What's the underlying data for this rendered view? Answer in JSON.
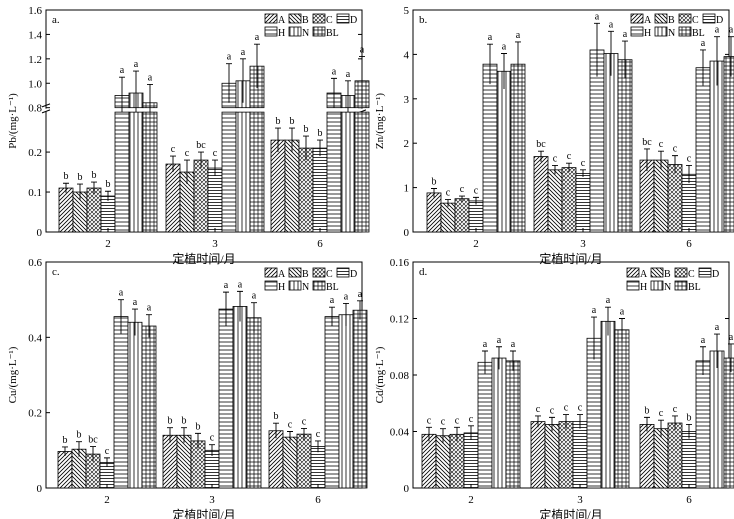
{
  "chart_data": [
    {
      "type": "bar",
      "panel": "a.",
      "ylabel": "Pb/(mg·L⁻¹)",
      "xlabel": "定植时间/月",
      "categories": [
        "2",
        "3",
        "6"
      ],
      "axis_break": {
        "lower": [
          0,
          0.3
        ],
        "upper": [
          0.8,
          1.6
        ]
      },
      "yticks": [
        "0",
        "0.1",
        "0.2",
        "0.8",
        "1.0",
        "1.2",
        "1.4",
        "1.6"
      ],
      "series": [
        {
          "name": "A",
          "values": [
            0.11,
            0.17,
            0.23
          ],
          "errors": [
            0.012,
            0.02,
            0.03
          ],
          "labels": [
            "b",
            "c",
            "b"
          ]
        },
        {
          "name": "B",
          "values": [
            0.1,
            0.15,
            0.23
          ],
          "errors": [
            0.02,
            0.03,
            0.03
          ],
          "labels": [
            "b",
            "c",
            "b"
          ]
        },
        {
          "name": "C",
          "values": [
            0.11,
            0.18,
            0.21
          ],
          "errors": [
            0.015,
            0.02,
            0.03
          ],
          "labels": [
            "b",
            "bc",
            "b"
          ]
        },
        {
          "name": "D",
          "values": [
            0.09,
            0.16,
            0.21
          ],
          "errors": [
            0.012,
            0.02,
            0.02
          ],
          "labels": [
            "b",
            "c",
            "b"
          ]
        },
        {
          "name": "H",
          "values": [
            0.9,
            1.0,
            0.92
          ],
          "errors": [
            0.15,
            0.16,
            0.12
          ],
          "labels": [
            "a",
            "a",
            "a"
          ]
        },
        {
          "name": "N",
          "values": [
            0.92,
            1.02,
            0.9
          ],
          "errors": [
            0.18,
            0.18,
            0.12
          ],
          "labels": [
            "a",
            "a",
            "a"
          ]
        },
        {
          "name": "BL",
          "values": [
            0.84,
            1.14,
            1.02
          ],
          "errors": [
            0.15,
            0.18,
            0.2
          ],
          "labels": [
            "a",
            "a",
            "a"
          ]
        }
      ]
    },
    {
      "type": "bar",
      "panel": "b.",
      "ylabel": "Zn/(mg·L⁻¹)",
      "xlabel": "定植时间/月",
      "categories": [
        "2",
        "3",
        "6"
      ],
      "ylim": [
        0,
        5
      ],
      "yticks": [
        "0",
        "1",
        "2",
        "3",
        "4",
        "5"
      ],
      "series": [
        {
          "name": "A",
          "values": [
            0.88,
            1.7,
            1.62
          ],
          "errors": [
            0.1,
            0.12,
            0.25
          ],
          "labels": [
            "b",
            "bc",
            "bc"
          ]
        },
        {
          "name": "B",
          "values": [
            0.65,
            1.4,
            1.62
          ],
          "errors": [
            0.08,
            0.1,
            0.2
          ],
          "labels": [
            "c",
            "c",
            "c"
          ]
        },
        {
          "name": "C",
          "values": [
            0.75,
            1.45,
            1.52
          ],
          "errors": [
            0.06,
            0.1,
            0.2
          ],
          "labels": [
            "c",
            "c",
            "c"
          ]
        },
        {
          "name": "D",
          "values": [
            0.7,
            1.32,
            1.3
          ],
          "errors": [
            0.08,
            0.08,
            0.2
          ],
          "labels": [
            "c",
            "c",
            "c"
          ]
        },
        {
          "name": "H",
          "values": [
            3.78,
            4.1,
            3.7
          ],
          "errors": [
            0.45,
            0.6,
            0.4
          ],
          "labels": [
            "a",
            "a",
            "a"
          ]
        },
        {
          "name": "N",
          "values": [
            3.62,
            4.02,
            3.85
          ],
          "errors": [
            0.4,
            0.5,
            0.55
          ],
          "labels": [
            "a",
            "a",
            "a"
          ]
        },
        {
          "name": "BL",
          "values": [
            3.78,
            3.88,
            3.95
          ],
          "errors": [
            0.5,
            0.42,
            0.45
          ],
          "labels": [
            "a",
            "a",
            "a"
          ]
        }
      ]
    },
    {
      "type": "bar",
      "panel": "c.",
      "ylabel": "Cu/(mg·L⁻¹)",
      "xlabel": "定植时间/月",
      "categories": [
        "2",
        "3",
        "6"
      ],
      "ylim": [
        0,
        0.6
      ],
      "yticks": [
        "0",
        "0.2",
        "0.4",
        "0.6"
      ],
      "series": [
        {
          "name": "A",
          "values": [
            0.097,
            0.14,
            0.152
          ],
          "errors": [
            0.012,
            0.02,
            0.02
          ],
          "labels": [
            "b",
            "b",
            "b"
          ]
        },
        {
          "name": "B",
          "values": [
            0.103,
            0.14,
            0.135
          ],
          "errors": [
            0.02,
            0.02,
            0.015
          ],
          "labels": [
            "b",
            "b",
            "c"
          ]
        },
        {
          "name": "C",
          "values": [
            0.09,
            0.125,
            0.143
          ],
          "errors": [
            0.02,
            0.02,
            0.015
          ],
          "labels": [
            "bc",
            "b",
            "c"
          ]
        },
        {
          "name": "D",
          "values": [
            0.068,
            0.1,
            0.11
          ],
          "errors": [
            0.012,
            0.015,
            0.015
          ],
          "labels": [
            "c",
            "c",
            "c"
          ]
        },
        {
          "name": "H",
          "values": [
            0.455,
            0.475,
            0.455
          ],
          "errors": [
            0.045,
            0.045,
            0.025
          ],
          "labels": [
            "a",
            "a",
            "a"
          ]
        },
        {
          "name": "N",
          "values": [
            0.44,
            0.482,
            0.46
          ],
          "errors": [
            0.035,
            0.04,
            0.03
          ],
          "labels": [
            "a",
            "a",
            "a"
          ]
        },
        {
          "name": "BL",
          "values": [
            0.43,
            0.452,
            0.472
          ],
          "errors": [
            0.03,
            0.04,
            0.025
          ],
          "labels": [
            "a",
            "a",
            "a"
          ]
        }
      ]
    },
    {
      "type": "bar",
      "panel": "d.",
      "ylabel": "Cd/(mg·L⁻¹)",
      "xlabel": "定植时间/月",
      "categories": [
        "2",
        "3",
        "6"
      ],
      "ylim": [
        0,
        0.16
      ],
      "yticks": [
        "0",
        "0.04",
        "0.08",
        "0.12",
        "0.16"
      ],
      "series": [
        {
          "name": "A",
          "values": [
            0.038,
            0.047,
            0.045
          ],
          "errors": [
            0.005,
            0.004,
            0.005
          ],
          "labels": [
            "c",
            "c",
            "b"
          ]
        },
        {
          "name": "B",
          "values": [
            0.037,
            0.045,
            0.042
          ],
          "errors": [
            0.005,
            0.005,
            0.006
          ],
          "labels": [
            "c",
            "c",
            "c"
          ]
        },
        {
          "name": "C",
          "values": [
            0.038,
            0.047,
            0.046
          ],
          "errors": [
            0.005,
            0.005,
            0.005
          ],
          "labels": [
            "c",
            "c",
            "c"
          ]
        },
        {
          "name": "D",
          "values": [
            0.039,
            0.047,
            0.04
          ],
          "errors": [
            0.005,
            0.005,
            0.005
          ],
          "labels": [
            "c",
            "c",
            "b"
          ]
        },
        {
          "name": "H",
          "values": [
            0.089,
            0.106,
            0.09
          ],
          "errors": [
            0.008,
            0.015,
            0.01
          ],
          "labels": [
            "a",
            "a",
            "a"
          ]
        },
        {
          "name": "N",
          "values": [
            0.092,
            0.118,
            0.097
          ],
          "errors": [
            0.008,
            0.01,
            0.012
          ],
          "labels": [
            "a",
            "a",
            "a"
          ]
        },
        {
          "name": "BL",
          "values": [
            0.09,
            0.112,
            0.092
          ],
          "errors": [
            0.007,
            0.008,
            0.01
          ],
          "labels": [
            "a",
            "a",
            "a"
          ]
        }
      ]
    }
  ]
}
